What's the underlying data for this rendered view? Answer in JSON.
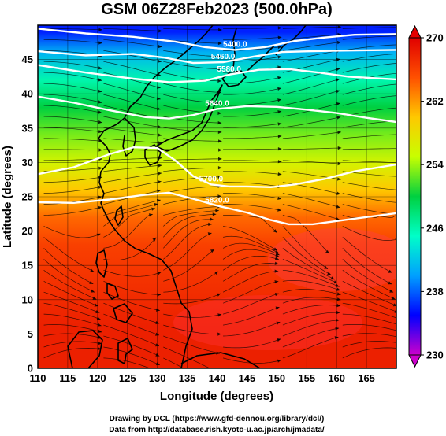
{
  "chart_data": {
    "type": "heatmap",
    "title": "GSM 06Z28Feb2023 (500.0hPa)",
    "xlabel": "Longitude (degrees)",
    "ylabel": "Latitude  (degrees)",
    "xlim": [
      110,
      170
    ],
    "ylim": [
      0,
      50
    ],
    "xticks": [
      110,
      115,
      120,
      125,
      130,
      135,
      140,
      145,
      150,
      155,
      160,
      165
    ],
    "yticks": [
      0,
      5,
      10,
      15,
      20,
      25,
      30,
      35,
      40,
      45
    ],
    "grid": true,
    "colorbar": {
      "range": [
        230,
        270
      ],
      "ticks": [
        230,
        238,
        246,
        254,
        262,
        270
      ],
      "colors": [
        "#cc00cc",
        "#0000ff",
        "#00a0ff",
        "#00ffc8",
        "#00d040",
        "#c8ff00",
        "#ffc800",
        "#ff5000",
        "#e00000"
      ]
    },
    "temperature_field": [
      {
        "lat": 49,
        "value": 236
      },
      {
        "lat": 46,
        "value": 241
      },
      {
        "lat": 42,
        "value": 246
      },
      {
        "lat": 38,
        "value": 250
      },
      {
        "lat": 34,
        "value": 253
      },
      {
        "lat": 30,
        "value": 256
      },
      {
        "lat": 26,
        "value": 260
      },
      {
        "lat": 22,
        "value": 264
      },
      {
        "lat": 18,
        "value": 266
      },
      {
        "lat": 12,
        "value": 267
      },
      {
        "lat": 6,
        "value": 268
      },
      {
        "lat": 0,
        "value": 268
      }
    ],
    "height_contours": [
      {
        "label": "5400.0",
        "points": [
          [
            110,
            49.5
          ],
          [
            118,
            48.8
          ],
          [
            126,
            48.3
          ],
          [
            133,
            47.6
          ],
          [
            138,
            46.8
          ],
          [
            143,
            46.4
          ],
          [
            148,
            46.8
          ],
          [
            153,
            47.7
          ],
          [
            158,
            48.2
          ],
          [
            163,
            48.6
          ],
          [
            170,
            48.7
          ]
        ]
      },
      {
        "label": "5460.0",
        "points": [
          [
            110,
            46.2
          ],
          [
            118,
            45.6
          ],
          [
            126,
            45.8
          ],
          [
            131,
            45.3
          ],
          [
            136,
            44.5
          ],
          [
            141,
            44.6
          ],
          [
            146,
            45.4
          ],
          [
            151,
            46.1
          ],
          [
            156,
            46.2
          ],
          [
            161,
            46.3
          ],
          [
            170,
            46.4
          ]
        ]
      },
      {
        "label": "5580.0",
        "points": [
          [
            110,
            44.2
          ],
          [
            118,
            43.1
          ],
          [
            126,
            42.2
          ],
          [
            132,
            41.7
          ],
          [
            138,
            41.9
          ],
          [
            142,
            42.8
          ],
          [
            147,
            43.5
          ],
          [
            152,
            43.6
          ],
          [
            157,
            43.1
          ],
          [
            162,
            42.5
          ],
          [
            170,
            42.1
          ]
        ]
      },
      {
        "label": "5640.0",
        "points": [
          [
            110,
            39.6
          ],
          [
            116,
            38.7
          ],
          [
            122,
            37.6
          ],
          [
            128,
            36.6
          ],
          [
            132,
            36.4
          ],
          [
            136,
            36.9
          ],
          [
            140,
            37.8
          ],
          [
            145,
            38.2
          ],
          [
            150,
            38.1
          ],
          [
            155,
            37.7
          ],
          [
            160,
            37.2
          ],
          [
            165,
            36.5
          ],
          [
            170,
            35.9
          ]
        ]
      },
      {
        "label": "5700.0",
        "points": [
          [
            110,
            28.3
          ],
          [
            116,
            29.3
          ],
          [
            122,
            31.2
          ],
          [
            126,
            32.2
          ],
          [
            130,
            32.1
          ],
          [
            133,
            30.3
          ],
          [
            136,
            28.0
          ],
          [
            139,
            26.8
          ],
          [
            142,
            26.5
          ],
          [
            145,
            26.5
          ],
          [
            149,
            26.4
          ],
          [
            153,
            26.8
          ],
          [
            158,
            27.6
          ],
          [
            163,
            28.7
          ],
          [
            170,
            29.7
          ]
        ]
      },
      {
        "label": "5820.0",
        "points": [
          [
            110,
            24.2
          ],
          [
            116,
            24.1
          ],
          [
            122,
            24.6
          ],
          [
            128,
            25.3
          ],
          [
            132,
            25.6
          ],
          [
            136,
            24.7
          ],
          [
            140,
            23.7
          ],
          [
            145,
            22.7
          ],
          [
            149,
            21.6
          ],
          [
            152,
            21.0
          ],
          [
            156,
            21.0
          ],
          [
            162,
            21.7
          ],
          [
            170,
            22.6
          ]
        ]
      }
    ]
  },
  "credits": {
    "line1": "Drawing by DCL (https://www.gfd-dennou.org/library/dcl/)",
    "line2": "Data from http://database.rish.kyoto-u.ac.jp/arch/jmadata/"
  }
}
